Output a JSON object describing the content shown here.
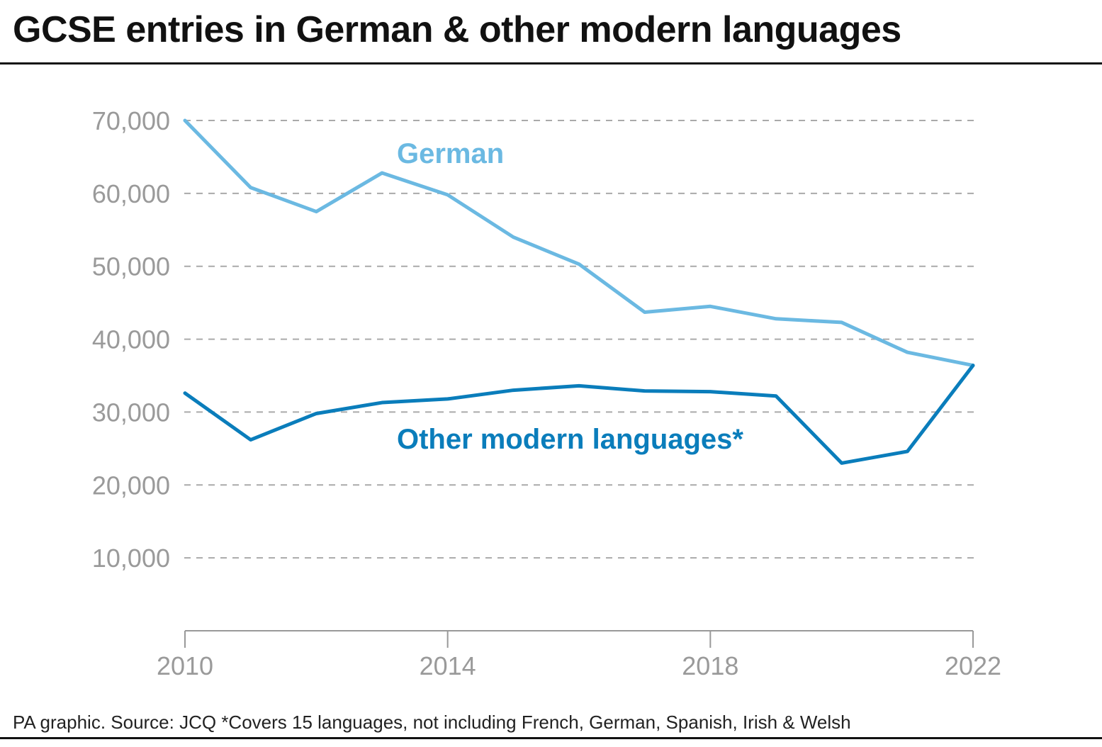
{
  "title": "GCSE entries in German & other modern languages",
  "source": "PA graphic. Source: JCQ *Covers 15 languages, not including French, German, Spanish, Irish & Welsh",
  "colors": {
    "german": "#6bb9e2",
    "other": "#0a7dbb",
    "grid": "#aaaaaa",
    "axis": "#999999"
  },
  "chart_data": {
    "type": "line",
    "title": "GCSE entries in German & other modern languages",
    "xlabel": "",
    "ylabel": "",
    "x": [
      2010,
      2011,
      2012,
      2013,
      2014,
      2015,
      2016,
      2017,
      2018,
      2019,
      2020,
      2021,
      2022
    ],
    "xticks": [
      "2010",
      "2014",
      "2018",
      "2022"
    ],
    "yticks": [
      "70,000",
      "60,000",
      "50,000",
      "40,000",
      "30,000",
      "20,000",
      "10,000"
    ],
    "ylim": [
      0,
      70000
    ],
    "xlim": [
      2010,
      2022
    ],
    "grid": true,
    "legend": "inline labels",
    "series": [
      {
        "name": "German",
        "values": [
          70000,
          60800,
          57500,
          62800,
          59800,
          54000,
          50300,
          43700,
          44500,
          42800,
          42300,
          38200,
          36400
        ]
      },
      {
        "name": "Other modern languages*",
        "values": [
          32600,
          26200,
          29800,
          31300,
          31800,
          33000,
          33600,
          32900,
          32800,
          32200,
          23000,
          24600,
          36400
        ]
      }
    ]
  }
}
